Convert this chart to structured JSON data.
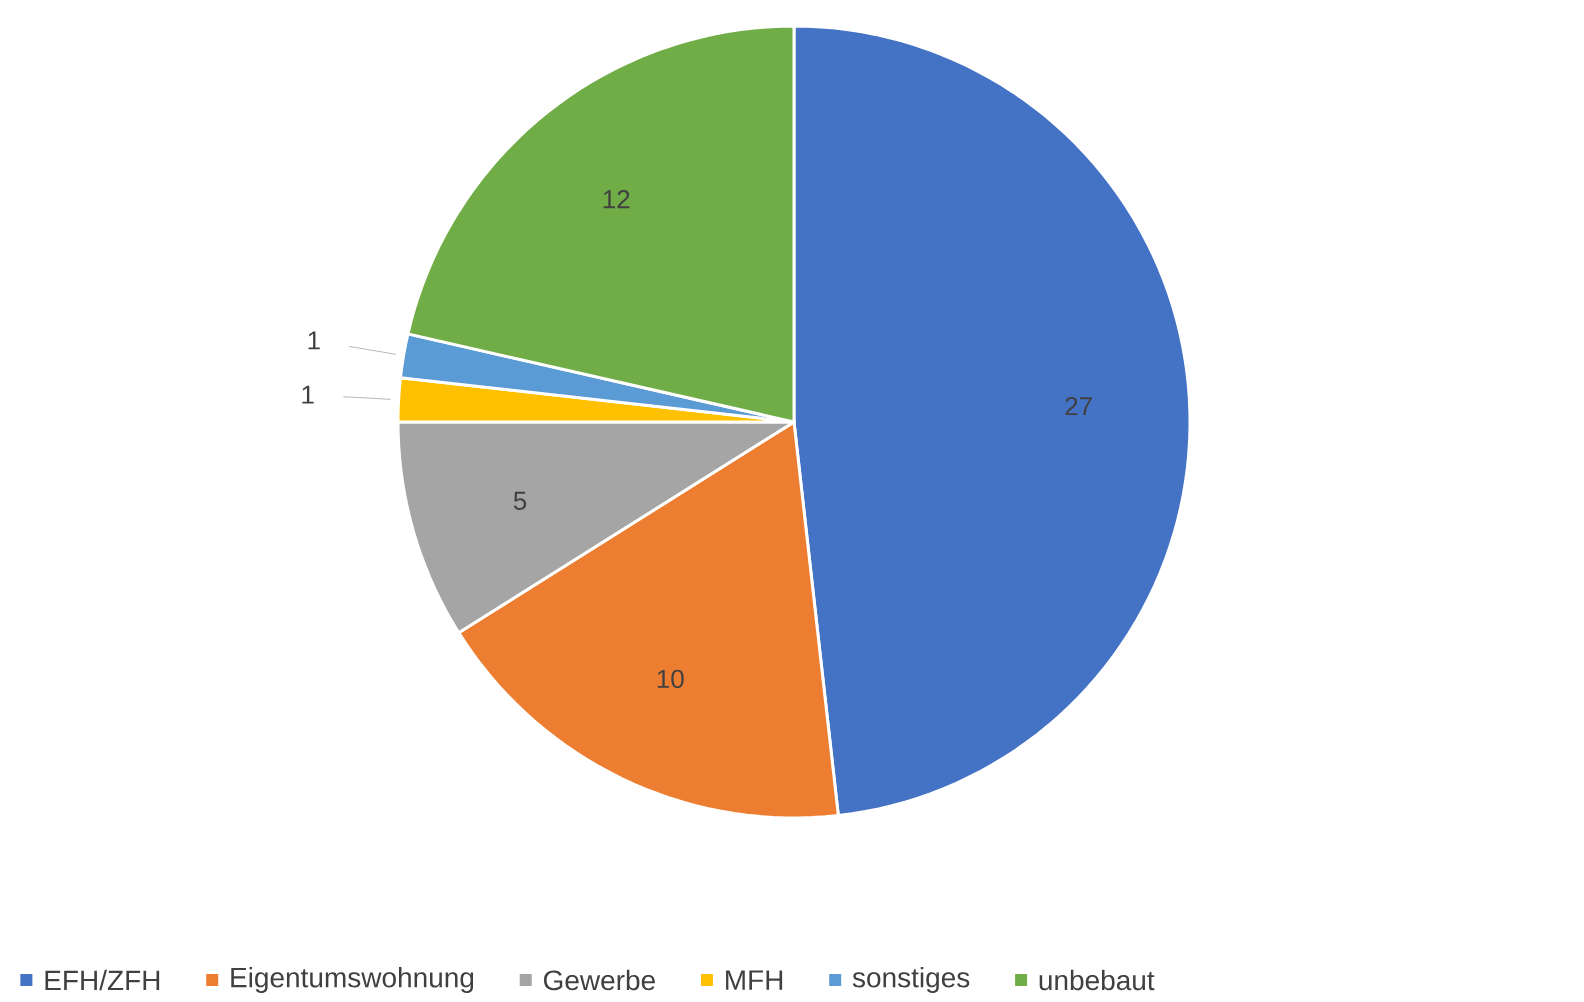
{
  "chart_data": {
    "type": "pie",
    "categories": [
      "EFH/ZFH",
      "Eigentumswohnung",
      "Gewerbe",
      "MFH",
      "sonstiges",
      "unbebaut"
    ],
    "values": [
      27,
      10,
      5,
      1,
      1,
      12
    ],
    "colors": [
      "#4472c4",
      "#ed7d31",
      "#a5a5a5",
      "#ffc000",
      "#5b9bd5",
      "#70ad47"
    ],
    "data_labels": true,
    "legend": "bottom"
  }
}
